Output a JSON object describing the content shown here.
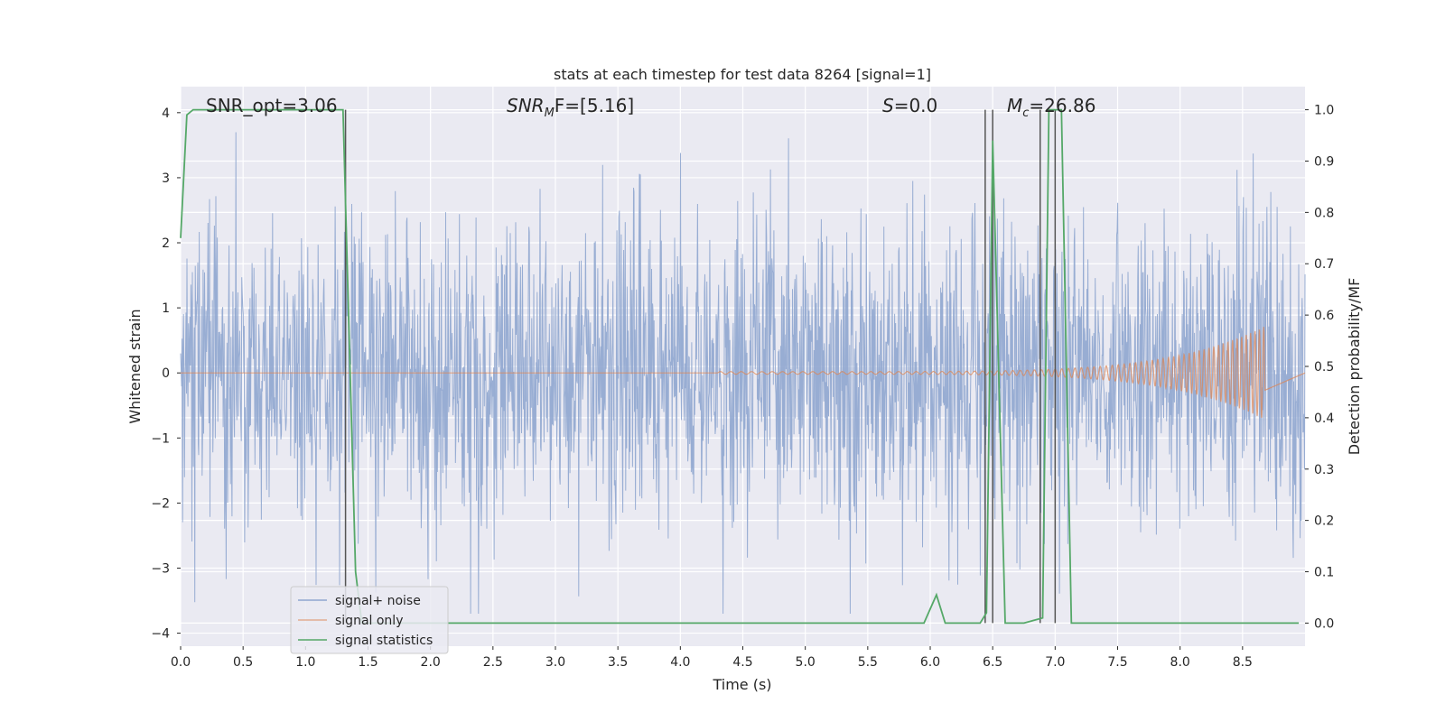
{
  "chart_data": {
    "type": "line",
    "title": "stats at each timestep for test data 8264 [signal=1]",
    "xlabel": "Time (s)",
    "ylabel": "Whitened strain",
    "y2label": "Detection probability/MF",
    "xlim": [
      0,
      9.0
    ],
    "ylim": [
      -4.2,
      4.4
    ],
    "y2lim": [
      -0.045,
      1.045
    ],
    "grid": true,
    "legend_position": "lower-left",
    "x_ticks": [
      0.0,
      0.5,
      1.0,
      1.5,
      2.0,
      2.5,
      3.0,
      3.5,
      4.0,
      4.5,
      5.0,
      5.5,
      6.0,
      6.5,
      7.0,
      7.5,
      8.0,
      8.5
    ],
    "x_tick_labels": [
      "0.0",
      "0.5",
      "1.0",
      "1.5",
      "2.0",
      "2.5",
      "3.0",
      "3.5",
      "4.0",
      "4.5",
      "5.0",
      "5.5",
      "6.0",
      "6.5",
      "7.0",
      "7.5",
      "8.0",
      "8.5"
    ],
    "y_ticks": [
      4,
      3,
      2,
      1,
      0,
      -1,
      -2,
      -3,
      -4
    ],
    "y_tick_labels": [
      "4",
      "3",
      "2",
      "1",
      "0",
      "−1",
      "−2",
      "−3",
      "−4"
    ],
    "y2_ticks": [
      1.0,
      0.9,
      0.8,
      0.7,
      0.6,
      0.5,
      0.4,
      0.3,
      0.2,
      0.1,
      0.0
    ],
    "y2_tick_labels": [
      "1.0",
      "0.9",
      "0.8",
      "0.7",
      "0.6",
      "0.5",
      "0.4",
      "0.3",
      "0.2",
      "0.1",
      "0.0"
    ],
    "annotations": {
      "snr_opt": "SNR_opt=3.06",
      "snr_mf_main": "SNR",
      "snr_mf_sub": "M",
      "snr_mf_rest": "F=[5.16]",
      "s_main": "S",
      "s_rest": "=0.0",
      "mc_main": "M",
      "mc_sub": "c",
      "mc_rest": "=26.86"
    },
    "series": [
      {
        "name": "signal+ noise",
        "color": "#8fa6cf",
        "description_type": "noise",
        "y_range": [
          -3.7,
          3.7
        ]
      },
      {
        "name": "signal only",
        "color": "#dd8452",
        "chirp_start": 4.3,
        "chirp_end": 8.68,
        "chirp_peak_amplitude": 0.7
      },
      {
        "name": "signal statistics",
        "color": "#55a868",
        "x": [
          0.0,
          0.05,
          0.1,
          0.2,
          1.3,
          1.4,
          1.45,
          5.95,
          6.05,
          6.12,
          6.4,
          6.45,
          6.5,
          6.6,
          6.75,
          6.9,
          6.95,
          7.05,
          7.13,
          8.95
        ],
        "y": [
          0.75,
          0.99,
          1.0,
          1.0,
          1.0,
          0.1,
          0.0,
          0.0,
          0.055,
          0.0,
          0.0,
          0.02,
          0.94,
          0.0,
          0.0,
          0.01,
          1.0,
          1.0,
          0.0,
          0.0
        ]
      }
    ],
    "vertical_lines_x": [
      1.32,
      6.44,
      6.5,
      6.88,
      7.0
    ]
  }
}
